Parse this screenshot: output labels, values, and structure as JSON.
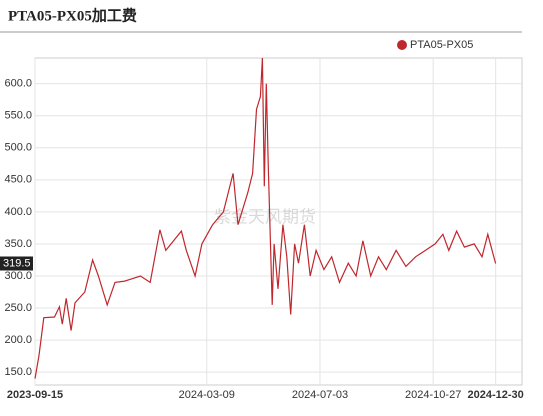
{
  "chart_data": {
    "type": "line",
    "title": "PTA05-PX05加工费",
    "watermark": "紫金天风期货",
    "legend": "top-right",
    "grid": true,
    "ylim": [
      130,
      640
    ],
    "yticks": [
      {
        "value": 150,
        "label": "150.0"
      },
      {
        "value": 200,
        "label": "200.0"
      },
      {
        "value": 250,
        "label": "250.0"
      },
      {
        "value": 300,
        "label": "300.0"
      },
      {
        "value": 350,
        "label": "350.0"
      },
      {
        "value": 400,
        "label": "400.0"
      },
      {
        "value": 450,
        "label": "450.0"
      },
      {
        "value": 500,
        "label": "500.0"
      },
      {
        "value": 550,
        "label": "550.0"
      },
      {
        "value": 600,
        "label": "600.0"
      }
    ],
    "xlim": [
      "2023-09-15",
      "2025-01-26"
    ],
    "xticks": [
      "2023-09-15",
      "2024-03-09",
      "2024-07-03",
      "2024-10-27",
      "2024-12-30"
    ],
    "x": [
      "2023-09-15",
      "2023-09-19",
      "2023-09-24",
      "2023-10-05",
      "2023-10-10",
      "2023-10-13",
      "2023-10-17",
      "2023-10-22",
      "2023-10-26",
      "2023-11-05",
      "2023-11-13",
      "2023-11-19",
      "2023-11-28",
      "2023-12-06",
      "2023-12-16",
      "2024-01-01",
      "2024-01-11",
      "2024-01-21",
      "2024-01-27",
      "2024-02-12",
      "2024-02-17",
      "2024-02-26",
      "2024-03-04",
      "2024-03-15",
      "2024-03-26",
      "2024-04-05",
      "2024-04-10",
      "2024-04-20",
      "2024-04-25",
      "2024-04-29",
      "2024-05-03",
      "2024-05-05",
      "2024-05-07",
      "2024-05-09",
      "2024-05-11",
      "2024-05-15",
      "2024-05-17",
      "2024-05-21",
      "2024-05-26",
      "2024-05-30",
      "2024-06-03",
      "2024-06-07",
      "2024-06-11",
      "2024-06-17",
      "2024-06-23",
      "2024-06-29",
      "2024-07-07",
      "2024-07-15",
      "2024-07-23",
      "2024-08-01",
      "2024-08-09",
      "2024-08-16",
      "2024-08-24",
      "2024-09-01",
      "2024-09-09",
      "2024-09-19",
      "2024-09-29",
      "2024-10-09",
      "2024-10-19",
      "2024-10-29",
      "2024-11-06",
      "2024-11-12",
      "2024-11-20",
      "2024-11-28",
      "2024-12-08",
      "2024-12-16",
      "2024-12-22",
      "2024-12-30"
    ],
    "series": [
      {
        "name": "PTA05-PX05",
        "color": "#c0272d",
        "values": [
          140,
          175,
          235,
          236,
          252,
          225,
          265,
          215,
          258,
          275,
          325,
          300,
          255,
          290,
          292,
          300,
          290,
          372,
          340,
          370,
          340,
          300,
          350,
          380,
          400,
          460,
          380,
          430,
          460,
          560,
          580,
          640,
          440,
          600,
          470,
          255,
          350,
          280,
          380,
          330,
          240,
          350,
          320,
          380,
          300,
          340,
          310,
          330,
          290,
          320,
          300,
          355,
          300,
          330,
          310,
          340,
          315,
          330,
          340,
          350,
          365,
          340,
          370,
          345,
          350,
          330,
          365,
          319.5
        ]
      }
    ]
  }
}
